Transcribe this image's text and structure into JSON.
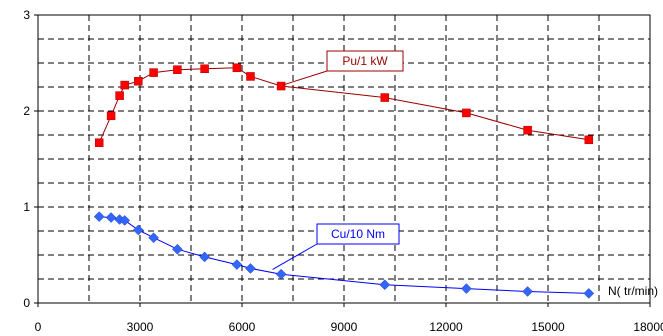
{
  "chart_data": {
    "type": "line",
    "title": "",
    "xlabel": "N( tr/min)",
    "ylabel": "",
    "xlim": [
      0,
      18000
    ],
    "ylim": [
      0,
      3
    ],
    "grid": true,
    "x_ticks": [
      "0",
      "3000",
      "6000",
      "9000",
      "12000",
      "15000",
      "18000"
    ],
    "y_ticks": [
      "0",
      "1",
      "2",
      "3"
    ],
    "series": [
      {
        "name": "Pu/1 kW",
        "color": "#ff0000",
        "line_color": "#990000",
        "marker": "square",
        "points": [
          [
            1800,
            1.67
          ],
          [
            2150,
            1.95
          ],
          [
            2400,
            2.16
          ],
          [
            2550,
            2.27
          ],
          [
            2950,
            2.31
          ],
          [
            3400,
            2.4
          ],
          [
            4100,
            2.43
          ],
          [
            4900,
            2.44
          ],
          [
            5850,
            2.45
          ],
          [
            6250,
            2.36
          ],
          [
            7150,
            2.26
          ],
          [
            10200,
            2.14
          ],
          [
            12600,
            1.98
          ],
          [
            14400,
            1.8
          ],
          [
            16200,
            1.7
          ]
        ]
      },
      {
        "name": "Cu/10 Nm",
        "color": "#3366ff",
        "line_color": "#0000ff",
        "marker": "diamond",
        "points": [
          [
            1800,
            0.9
          ],
          [
            2150,
            0.89
          ],
          [
            2400,
            0.87
          ],
          [
            2550,
            0.86
          ],
          [
            2950,
            0.76
          ],
          [
            3400,
            0.68
          ],
          [
            4100,
            0.56
          ],
          [
            4900,
            0.48
          ],
          [
            5850,
            0.4
          ],
          [
            6250,
            0.36
          ],
          [
            7150,
            0.3
          ],
          [
            10200,
            0.19
          ],
          [
            12600,
            0.15
          ],
          [
            14400,
            0.12
          ],
          [
            16200,
            0.1
          ]
        ]
      }
    ]
  }
}
